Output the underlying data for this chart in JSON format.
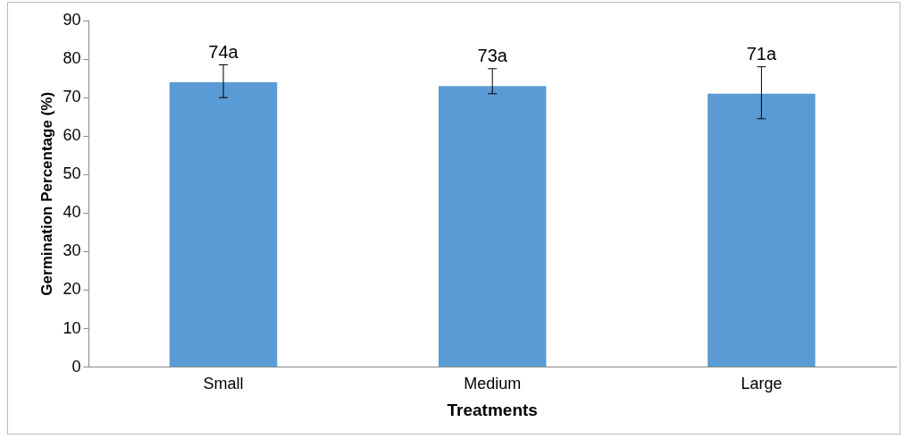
{
  "chart_data": {
    "type": "bar",
    "xlabel": "Treatments",
    "ylabel": "Germination Percentage (%)",
    "categories": [
      "Small",
      "Medium",
      "Large"
    ],
    "values": [
      74,
      73,
      71
    ],
    "value_labels": [
      "74a",
      "73a",
      "71a"
    ],
    "errors": [
      [
        70,
        78.5
      ],
      [
        71,
        77.5
      ],
      [
        64.5,
        78
      ]
    ],
    "color": "#5b9bd5",
    "ylim": [
      0,
      90
    ],
    "yticks": [
      0,
      10,
      20,
      30,
      40,
      50,
      60,
      70,
      80,
      90
    ],
    "grid": false,
    "legend": false
  }
}
